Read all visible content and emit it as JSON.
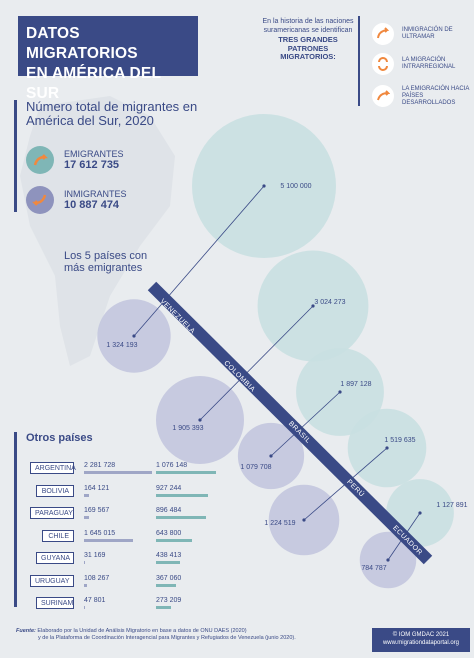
{
  "header": {
    "title_line1": "DATOS MIGRATORIOS",
    "title_line2": "EN AMÉRICA DEL SUR"
  },
  "intro": {
    "text": "En la historia de las naciones suramericanas se identifican",
    "bold": "TRES GRANDES PATRONES MIGRATORIOS",
    "suffix": ":"
  },
  "patterns": [
    {
      "label": "INMIGRACIÓN DE ULTRAMAR",
      "icon": "arrow-curve-icon"
    },
    {
      "label": "LA MIGRACIÓN INTRARREGIONAL",
      "icon": "cycle-arrows-icon"
    },
    {
      "label": "LA EMIGRACIÓN HACIA PAÍSES DESARROLLADOS",
      "icon": "arrow-out-icon"
    }
  ],
  "totals": {
    "heading": "Número total de migrantes en América del Sur, 2020",
    "emigrants_label": "EMIGRANTES",
    "emigrants_value": "17 612 735",
    "immigrants_label": "INMIGRANTES",
    "immigrants_value": "10 887 474"
  },
  "top5_heading_1": "Los 5 países con",
  "top5_heading_2": "más emigrantes",
  "chart_data": {
    "type": "bubble",
    "categories": [
      "VENEZUELA",
      "COLOMBIA",
      "BRASIL",
      "PERÚ",
      "ECUADOR"
    ],
    "series": [
      {
        "name": "",
        "values": [
          5100000,
          3024273,
          1897128,
          1519635,
          1127891
        ],
        "labels": [
          "5 100 000",
          "3 024 273",
          "1 897 128",
          "1 519 635",
          "1 127 891"
        ]
      },
      {
        "name": "",
        "values": [
          1324193,
          1905393,
          1079708,
          1224519,
          784787
        ],
        "labels": [
          "1 324 193",
          "1 905 393",
          "1 079 708",
          "1 224 519",
          "784 787"
        ]
      }
    ],
    "colors": {
      "emigrants": "#c9e0e1",
      "immigrants": "#c3c7de",
      "line": "#3a4a86"
    }
  },
  "others": {
    "heading": "Otros países",
    "rows": [
      {
        "country": "ARGENTINA",
        "emi": "2 281 728",
        "imi": "1 076 148",
        "emi_v": 2281728,
        "imi_v": 1076148
      },
      {
        "country": "BOLIVIA",
        "emi": "164 121",
        "imi": "927 244",
        "emi_v": 164121,
        "imi_v": 927244
      },
      {
        "country": "PARAGUAY",
        "emi": "169 567",
        "imi": "896 484",
        "emi_v": 169567,
        "imi_v": 896484
      },
      {
        "country": "CHILE",
        "emi": "1 645 015",
        "imi": "643 800",
        "emi_v": 1645015,
        "imi_v": 643800
      },
      {
        "country": "GUYANA",
        "emi": "31 169",
        "imi": "438 413",
        "emi_v": 31169,
        "imi_v": 438413
      },
      {
        "country": "URUGUAY",
        "emi": "108 267",
        "imi": "367 060",
        "emi_v": 108267,
        "imi_v": 367060
      },
      {
        "country": "SURINAM",
        "emi": "47 801",
        "imi": "273 209",
        "emi_v": 47801,
        "imi_v": 273209
      }
    ]
  },
  "footer": {
    "source_label": "Fuente:",
    "source_text1": "Elaborado por la Unidad de Análisis Migratorio en base a datos de ONU DAES (2020)",
    "source_text2": "y de la Plataforma de Coordinación Interagencial para Migrantes y Refugiados de Venezuela (junio 2020).",
    "credit1": "© IOM GMDAC 2021",
    "credit2": "www.migrationdataportal.org"
  }
}
